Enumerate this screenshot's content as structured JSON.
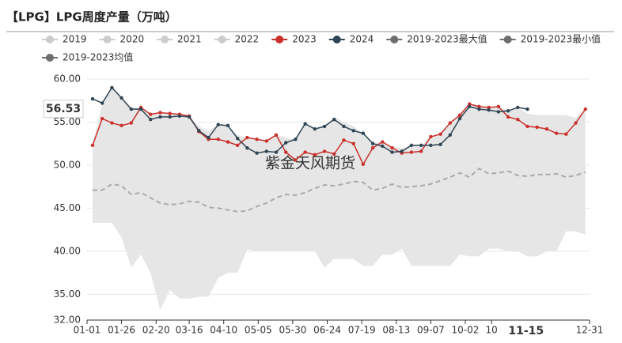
{
  "chart_data": {
    "type": "line",
    "title": "【LPG】LPG周度产量（万吨）",
    "watermark": "紫金天风期货",
    "pointer_y_label": {
      "value": 56.53,
      "label": "56.53"
    },
    "pointer_x_label": {
      "value": 318,
      "label": "11-15"
    },
    "x": [
      4,
      11,
      18,
      25,
      32,
      39,
      46,
      53,
      60,
      67,
      74,
      81,
      88,
      95,
      102,
      109,
      116,
      123,
      130,
      137,
      144,
      151,
      158,
      165,
      172,
      179,
      186,
      193,
      200,
      207,
      214,
      221,
      228,
      235,
      242,
      249,
      256,
      263,
      270,
      277,
      284,
      291,
      298,
      305,
      312,
      319,
      326,
      333,
      340,
      347,
      354,
      361
    ],
    "xlim": [
      0,
      364
    ],
    "xticks": [
      {
        "value": 0,
        "label": "01-01"
      },
      {
        "value": 25,
        "label": "01-26"
      },
      {
        "value": 50,
        "label": "02-20"
      },
      {
        "value": 74,
        "label": "03-16"
      },
      {
        "value": 99,
        "label": "04-10"
      },
      {
        "value": 124,
        "label": "05-05"
      },
      {
        "value": 149,
        "label": "05-30"
      },
      {
        "value": 174,
        "label": "06-24"
      },
      {
        "value": 199,
        "label": "07-19"
      },
      {
        "value": 224,
        "label": "08-13"
      },
      {
        "value": 249,
        "label": "09-07"
      },
      {
        "value": 274,
        "label": "10-02"
      },
      {
        "value": 293,
        "label": "10"
      },
      {
        "value": 364,
        "label": "12-31"
      }
    ],
    "ylim": [
      32,
      60
    ],
    "yticks": [
      {
        "value": 32,
        "label": "32.00"
      },
      {
        "value": 35,
        "label": "35.00"
      },
      {
        "value": 40,
        "label": "40.00"
      },
      {
        "value": 45,
        "label": "45.00"
      },
      {
        "value": 50,
        "label": "50.00"
      },
      {
        "value": 55,
        "label": "55.00"
      },
      {
        "value": 60,
        "label": "60.00"
      }
    ],
    "grid": true,
    "series": [
      {
        "name": "2019",
        "color": "#cccccc",
        "hidden": true
      },
      {
        "name": "2020",
        "color": "#cccccc",
        "hidden": true
      },
      {
        "name": "2021",
        "color": "#cccccc",
        "hidden": true
      },
      {
        "name": "2022",
        "color": "#cccccc",
        "hidden": true
      },
      {
        "name": "2023",
        "color": "#c9302c",
        "style": "line",
        "values": [
          52.3,
          55.4,
          54.9,
          54.6,
          54.9,
          56.7,
          55.9,
          56.1,
          56.0,
          55.9,
          55.7,
          53.9,
          53.0,
          53.0,
          52.7,
          52.3,
          53.2,
          53.0,
          52.8,
          53.5,
          51.5,
          50.6,
          51.5,
          51.2,
          51.6,
          51.3,
          52.9,
          52.5,
          50.1,
          52.0,
          52.7,
          52.0,
          51.4,
          51.5,
          51.6,
          53.3,
          53.6,
          54.9,
          55.8,
          57.1,
          56.8,
          56.7,
          56.8,
          55.6,
          55.3,
          54.5,
          54.4,
          54.2,
          53.7,
          53.6,
          54.9,
          56.5
        ]
      },
      {
        "name": "2024",
        "color": "#2f4554",
        "style": "line",
        "values": [
          57.7,
          57.2,
          59.0,
          57.8,
          56.5,
          56.5,
          55.3,
          55.6,
          55.6,
          55.7,
          55.6,
          54.0,
          53.2,
          54.7,
          54.6,
          53.1,
          52.0,
          51.4,
          51.6,
          51.5,
          52.6,
          53.0,
          54.8,
          54.2,
          54.5,
          55.3,
          54.5,
          54.0,
          53.7,
          52.5,
          52.2,
          51.5,
          51.6,
          52.3,
          52.3,
          52.3,
          52.4,
          53.5,
          55.4,
          56.8,
          56.5,
          56.4,
          56.2,
          56.3,
          56.7,
          56.5,
          null,
          null,
          null,
          null,
          null,
          null
        ]
      },
      {
        "name": "2019-2023最大值",
        "color": "#6e6e6e",
        "style": "band-top",
        "fill": "#e6e6e6",
        "values": [
          52.3,
          57.2,
          59.0,
          57.8,
          56.7,
          56.7,
          56.0,
          56.1,
          56.0,
          55.9,
          55.7,
          54.5,
          54.0,
          54.7,
          54.6,
          53.5,
          53.2,
          53.0,
          52.8,
          53.5,
          53.2,
          53.0,
          54.8,
          54.2,
          54.5,
          55.6,
          55.0,
          54.5,
          53.7,
          52.6,
          52.7,
          52.2,
          52.0,
          52.3,
          52.3,
          53.3,
          53.6,
          54.9,
          55.8,
          57.1,
          56.8,
          56.7,
          56.8,
          56.3,
          56.7,
          56.0,
          55.8,
          55.8,
          55.8,
          55.8,
          55.5,
          56.5
        ]
      },
      {
        "name": "2019-2023最小值",
        "color": "#6e6e6e",
        "style": "band-bottom",
        "values": [
          43.3,
          43.3,
          43.3,
          41.6,
          38.1,
          39.6,
          37.5,
          33.2,
          35.5,
          34.5,
          34.5,
          34.7,
          34.7,
          36.9,
          37.5,
          37.5,
          40.2,
          40.0,
          40.0,
          40.0,
          40.0,
          40.0,
          40.0,
          40.0,
          38.1,
          39.1,
          39.1,
          39.1,
          38.3,
          38.3,
          39.6,
          39.6,
          40.3,
          38.3,
          38.3,
          38.3,
          38.3,
          38.3,
          39.6,
          39.4,
          39.4,
          40.3,
          40.3,
          40.0,
          40.0,
          39.4,
          39.4,
          40.0,
          40.0,
          42.3,
          42.3,
          41.9
        ]
      },
      {
        "name": "2019-2023均值",
        "color": "#6e6e6e",
        "line_color": "#aaaaaa",
        "style": "dashed",
        "values": [
          47.1,
          47.1,
          47.8,
          47.6,
          46.6,
          46.8,
          46.2,
          45.6,
          45.4,
          45.5,
          45.8,
          45.7,
          45.1,
          45.0,
          44.8,
          44.6,
          44.7,
          45.2,
          45.6,
          46.2,
          46.6,
          46.5,
          46.8,
          47.3,
          47.7,
          47.6,
          47.8,
          48.1,
          48.0,
          47.1,
          47.3,
          47.8,
          47.4,
          47.5,
          47.6,
          47.8,
          48.2,
          48.6,
          49.1,
          48.6,
          49.6,
          49.0,
          49.1,
          49.3,
          48.8,
          48.7,
          48.9,
          48.9,
          49.0,
          48.6,
          48.8,
          49.2
        ]
      }
    ]
  }
}
